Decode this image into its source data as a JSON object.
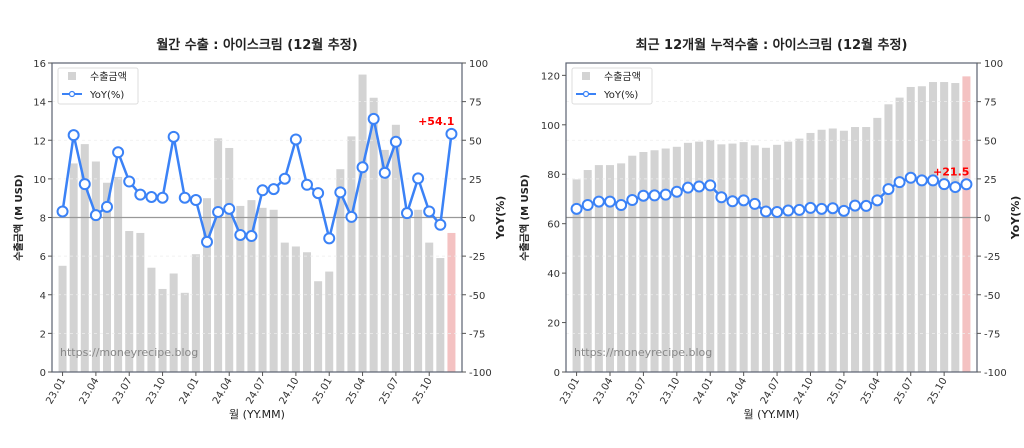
{
  "chart_data": [
    {
      "type": "bar+line",
      "title": "월간 수출 : 아이스크림 (12월 추정)",
      "xlabel": "월 (YY.MM)",
      "ylabel": "수출금액 (M USD)",
      "ylabel_right": "YoY(%)",
      "ylim": [
        0,
        16
      ],
      "yticks": [
        0,
        2,
        4,
        6,
        8,
        10,
        12,
        14,
        16
      ],
      "ylim_right": [
        -100,
        100
      ],
      "yticks_right": [
        -100,
        -75,
        -50,
        -25,
        0,
        25,
        50,
        75,
        100
      ],
      "xtick_labels": [
        "23.01",
        "23.04",
        "23.07",
        "23.10",
        "24.01",
        "24.04",
        "24.07",
        "24.10",
        "25.01",
        "25.04",
        "25.07",
        "25.10"
      ],
      "categories": [
        "23.01",
        "23.02",
        "23.03",
        "23.04",
        "23.05",
        "23.06",
        "23.07",
        "23.08",
        "23.09",
        "23.10",
        "23.11",
        "23.12",
        "24.01",
        "24.02",
        "24.03",
        "24.04",
        "24.05",
        "24.06",
        "24.07",
        "24.08",
        "24.09",
        "24.10",
        "24.11",
        "24.12",
        "25.01",
        "25.02",
        "25.03",
        "25.04",
        "25.05",
        "25.06",
        "25.07",
        "25.08",
        "25.09",
        "25.10",
        "25.11",
        "25.12"
      ],
      "series": [
        {
          "name": "수출금액",
          "kind": "bar",
          "color": "#d3d3d3",
          "highlight_last_color": "#f4c2c2",
          "values": [
            5.5,
            10.8,
            11.8,
            10.9,
            9.8,
            10.1,
            7.3,
            7.2,
            5.4,
            4.3,
            5.1,
            4.1,
            6.1,
            9.0,
            12.1,
            11.6,
            8.6,
            8.9,
            8.5,
            8.4,
            6.7,
            6.5,
            6.2,
            4.7,
            5.2,
            10.5,
            12.2,
            15.4,
            14.2,
            11.5,
            12.8,
            8.5,
            8.4,
            6.7,
            5.9,
            7.2
          ]
        },
        {
          "name": "YoY(%)",
          "kind": "line",
          "color": "#3b82f6",
          "axis": "right",
          "values": [
            3.9,
            53.3,
            21.6,
            1.5,
            6.9,
            42.2,
            23.3,
            14.8,
            13.3,
            12.8,
            52.2,
            12.8,
            11.3,
            -15.8,
            3.6,
            5.6,
            -11.3,
            -12.0,
            17.6,
            18.4,
            25.1,
            50.5,
            21.2,
            15.8,
            -13.5,
            16.3,
            0.4,
            32.5,
            63.8,
            28.9,
            49.0,
            2.8,
            25.3,
            3.9,
            -4.7,
            54.1
          ]
        }
      ],
      "last_value_label": "+54.1",
      "legend": "top-left",
      "watermark": "https://moneyrecipe.blog",
      "grid": "horizontal dashed (right axis)"
    },
    {
      "type": "bar+line",
      "title": "최근 12개월 누적수출 : 아이스크림 (12월 추정)",
      "xlabel": "월 (YY.MM)",
      "ylabel": "수출금액 (M USD)",
      "ylabel_right": "YoY(%)",
      "ylim": [
        0,
        125
      ],
      "yticks": [
        0,
        20,
        40,
        60,
        80,
        100,
        120
      ],
      "ylim_right": [
        -100,
        100
      ],
      "yticks_right": [
        -100,
        -75,
        -50,
        -25,
        0,
        25,
        50,
        75,
        100
      ],
      "xtick_labels": [
        "23.01",
        "23.04",
        "23.07",
        "23.10",
        "24.01",
        "24.04",
        "24.07",
        "24.10",
        "25.01",
        "25.04",
        "25.07",
        "25.10"
      ],
      "categories": [
        "23.01",
        "23.02",
        "23.03",
        "23.04",
        "23.05",
        "23.06",
        "23.07",
        "23.08",
        "23.09",
        "23.10",
        "23.11",
        "23.12",
        "24.01",
        "24.02",
        "24.03",
        "24.04",
        "24.05",
        "24.06",
        "24.07",
        "24.08",
        "24.09",
        "24.10",
        "24.11",
        "24.12",
        "25.01",
        "25.02",
        "25.03",
        "25.04",
        "25.05",
        "25.06",
        "25.07",
        "25.08",
        "25.09",
        "25.10",
        "25.11",
        "25.12"
      ],
      "series": [
        {
          "name": "수출금액",
          "kind": "bar",
          "color": "#d3d3d3",
          "highlight_last_color": "#f4c2c2",
          "values": [
            77.9,
            81.7,
            83.7,
            83.7,
            84.4,
            87.5,
            89.0,
            89.7,
            90.4,
            91.1,
            92.7,
            93.2,
            93.9,
            92.1,
            92.4,
            93.0,
            91.7,
            90.7,
            91.9,
            93.2,
            94.4,
            96.7,
            98.0,
            98.5,
            97.6,
            99.1,
            99.1,
            102.8,
            108.3,
            111.0,
            115.3,
            115.6,
            117.3,
            117.3,
            116.9,
            119.6
          ]
        },
        {
          "name": "YoY(%)",
          "kind": "line",
          "color": "#3b82f6",
          "axis": "right",
          "values": [
            5.6,
            8.1,
            10.3,
            10.3,
            8.1,
            11.3,
            14.1,
            14.3,
            14.8,
            16.7,
            19.3,
            20.1,
            20.8,
            13.1,
            10.5,
            11.1,
            8.8,
            3.9,
            3.6,
            4.5,
            4.9,
            6.2,
            5.6,
            6.0,
            4.3,
            7.7,
            7.5,
            11.1,
            18.4,
            22.9,
            25.7,
            24.0,
            24.0,
            21.6,
            19.7,
            21.5
          ]
        }
      ],
      "last_value_label": "+21.5",
      "legend": "top-left",
      "watermark": "https://moneyrecipe.blog",
      "grid": "horizontal dashed (right axis)"
    }
  ]
}
